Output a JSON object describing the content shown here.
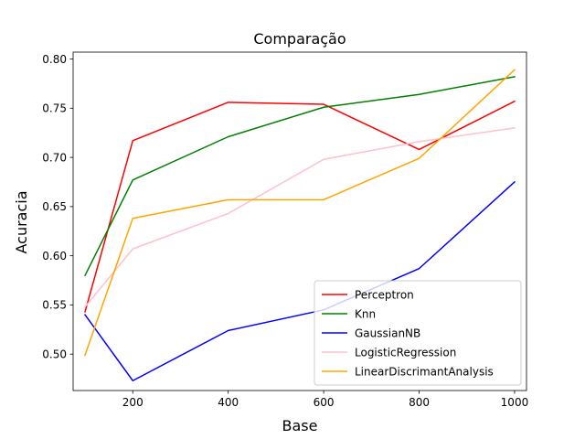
{
  "chart_data": {
    "type": "line",
    "title": "Comparação",
    "xlabel": "Base",
    "ylabel": "Acuracia",
    "x": [
      100,
      200,
      400,
      600,
      800,
      1000
    ],
    "xlim": [
      75,
      1025
    ],
    "ylim": [
      0.463,
      0.807
    ],
    "xticks": [
      200,
      400,
      600,
      800,
      1000
    ],
    "yticks": [
      0.5,
      0.55,
      0.6,
      0.65,
      0.7,
      0.75,
      0.8
    ],
    "ytick_labels": [
      "0.50",
      "0.55",
      "0.60",
      "0.65",
      "0.70",
      "0.75",
      "0.80"
    ],
    "grid": false,
    "legend_position": "lower-right",
    "series": [
      {
        "name": "Perceptron",
        "color": "#ff0000",
        "values": [
          0.543,
          0.717,
          0.756,
          0.754,
          0.708,
          0.757
        ]
      },
      {
        "name": "Knn",
        "color": "#008000",
        "values": [
          0.58,
          0.677,
          0.721,
          0.751,
          0.764,
          0.782
        ]
      },
      {
        "name": "GaussianNB",
        "color": "#0000ff",
        "values": [
          0.54,
          0.473,
          0.524,
          0.545,
          0.587,
          0.675
        ]
      },
      {
        "name": "LogisticRegression",
        "color": "#ffc0cb",
        "values": [
          0.548,
          0.607,
          0.643,
          0.698,
          0.716,
          0.73
        ]
      },
      {
        "name": "LinearDiscrimantAnalysis",
        "color": "#ffa500",
        "values": [
          0.499,
          0.638,
          0.657,
          0.657,
          0.699,
          0.789
        ]
      }
    ]
  }
}
